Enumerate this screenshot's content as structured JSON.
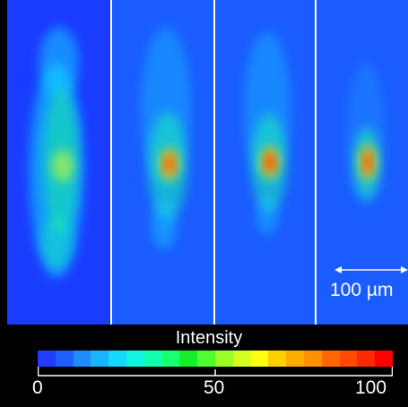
{
  "colorbar": {
    "title": "Intensity",
    "min_label": "0",
    "mid_label": "50",
    "max_label": "100",
    "colors": [
      "#1f3cff",
      "#1e60ff",
      "#1c8cff",
      "#19b4ff",
      "#16d8ff",
      "#10f5e0",
      "#12ffb0",
      "#18ff70",
      "#16ee2a",
      "#50ff30",
      "#9aff28",
      "#d4ff20",
      "#ffff10",
      "#ffd000",
      "#ffac00",
      "#ff9000",
      "#ff6800",
      "#ff4a00",
      "#ff2a00",
      "#ff0000"
    ]
  },
  "scale_bar": {
    "label": "100 µm"
  },
  "panels": [
    {
      "peak_level": 0.55
    },
    {
      "peak_level": 0.88
    },
    {
      "peak_level": 0.93
    },
    {
      "peak_level": 0.95
    }
  ],
  "background_color": "#1a3cff"
}
